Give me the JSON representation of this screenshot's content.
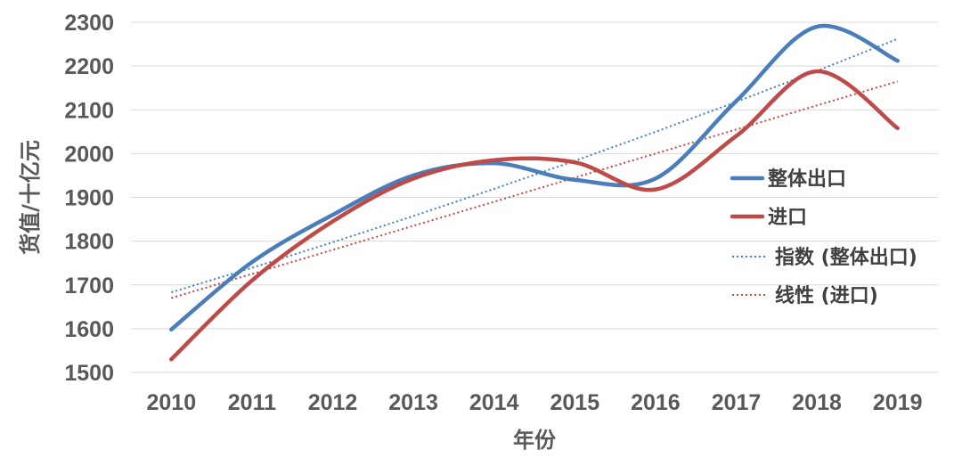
{
  "chart_data": {
    "type": "line",
    "xlabel": "年份",
    "ylabel": "货值/十亿元",
    "ylim": [
      1500,
      2300
    ],
    "ytick_step": 100,
    "grid": true,
    "legend_position": "right",
    "categories": [
      "2010",
      "2011",
      "2012",
      "2013",
      "2014",
      "2015",
      "2016",
      "2017",
      "2018",
      "2019"
    ],
    "series": [
      {
        "name": "整体出口",
        "color": "#4a7ebb",
        "style": "solid",
        "values": [
          1598,
          1752,
          1860,
          1950,
          1978,
          1940,
          1943,
          2120,
          2290,
          2212
        ]
      },
      {
        "name": "进口",
        "color": "#be4b48",
        "style": "solid",
        "values": [
          1530,
          1710,
          1845,
          1943,
          1985,
          1980,
          1918,
          2040,
          2188,
          2058
        ]
      }
    ],
    "trendlines": [
      {
        "name": "指数 (整体出口)",
        "type": "exponential",
        "color": "#4a7ebb",
        "style": "dotted",
        "start": 1683,
        "end": 2262
      },
      {
        "name": "线性 (进口)",
        "type": "linear",
        "color": "#be4b48",
        "style": "dotted",
        "start": 1670,
        "end": 2165
      }
    ]
  }
}
